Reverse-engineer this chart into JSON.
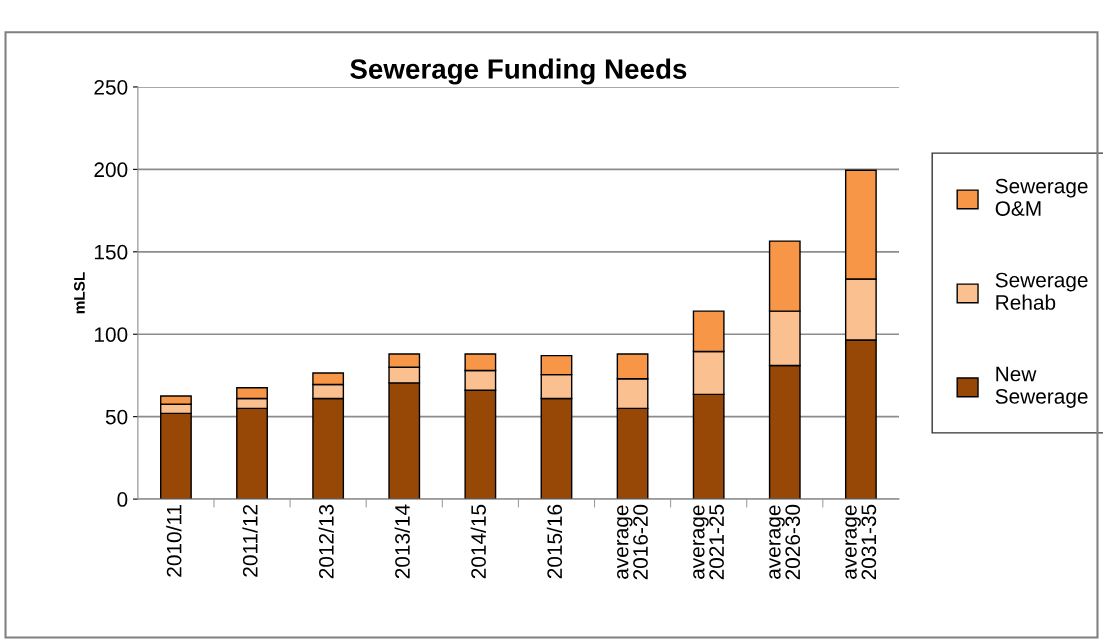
{
  "chart_data": {
    "type": "bar",
    "title": "Sewerage Funding Needs",
    "ylabel": "mLSL",
    "categories": [
      "2010/11",
      "2011/12",
      "2012/13",
      "2013/14",
      "2014/15",
      "2015/16",
      "average\n2016-20",
      "average\n2021-25",
      "average\n2026-30",
      "average\n2031-35"
    ],
    "stacked": true,
    "series": [
      {
        "name": "New Sewerage",
        "color": "#974706",
        "values": [
          52,
          55,
          61,
          70.5,
          66,
          61,
          55,
          63.5,
          81,
          96.5
        ]
      },
      {
        "name": "Sewerage Rehab",
        "color": "#fac090",
        "values": [
          5.5,
          6,
          8.5,
          9.5,
          12,
          14.5,
          18,
          26,
          33,
          37
        ]
      },
      {
        "name": "Sewerage O&M",
        "color": "#f79646",
        "values": [
          5,
          6.5,
          7,
          8,
          10,
          11.5,
          15,
          24.5,
          42.5,
          66
        ]
      }
    ],
    "ylim": [
      0,
      250
    ],
    "yticks": [
      0,
      50,
      100,
      150,
      200,
      250
    ],
    "grid": "y",
    "legend": "right"
  }
}
